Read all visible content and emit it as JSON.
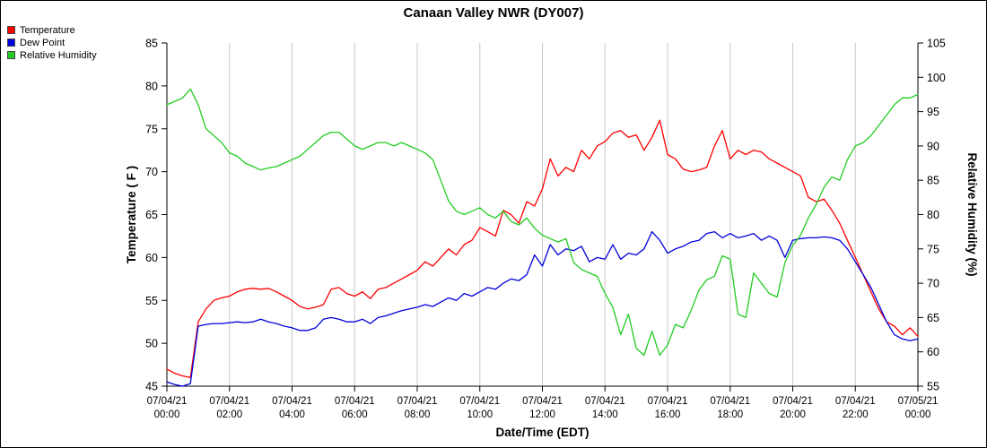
{
  "title": "Canaan Valley NWR (DY007)",
  "chart_data": {
    "type": "line",
    "title": "Canaan Valley NWR (DY007)",
    "xlabel": "Date/Time (EDT)",
    "ylabel_left": "Temperature ( F )",
    "ylabel_right": "Relative Humidity (%)",
    "ylim_left": [
      45,
      85
    ],
    "yticks_left": [
      45,
      50,
      55,
      60,
      65,
      70,
      75,
      80,
      85
    ],
    "ylim_right": [
      55,
      105
    ],
    "yticks_right": [
      55,
      60,
      65,
      70,
      75,
      80,
      85,
      90,
      95,
      100,
      105
    ],
    "grid": "vertical",
    "grid_color": "#c8c8c8",
    "legend_position": "top-left",
    "x_ticks": [
      {
        "date": "07/04/21",
        "time": "00:00"
      },
      {
        "date": "07/04/21",
        "time": "02:00"
      },
      {
        "date": "07/04/21",
        "time": "04:00"
      },
      {
        "date": "07/04/21",
        "time": "06:00"
      },
      {
        "date": "07/04/21",
        "time": "08:00"
      },
      {
        "date": "07/04/21",
        "time": "10:00"
      },
      {
        "date": "07/04/21",
        "time": "12:00"
      },
      {
        "date": "07/04/21",
        "time": "14:00"
      },
      {
        "date": "07/04/21",
        "time": "16:00"
      },
      {
        "date": "07/04/21",
        "time": "18:00"
      },
      {
        "date": "07/04/21",
        "time": "20:00"
      },
      {
        "date": "07/04/21",
        "time": "22:00"
      },
      {
        "date": "07/05/21",
        "time": "00:00"
      }
    ],
    "x_hours": [
      0,
      0.25,
      0.5,
      0.75,
      1,
      1.25,
      1.5,
      1.75,
      2,
      2.25,
      2.5,
      2.75,
      3,
      3.25,
      3.5,
      3.75,
      4,
      4.25,
      4.5,
      4.75,
      5,
      5.25,
      5.5,
      5.75,
      6,
      6.25,
      6.5,
      6.75,
      7,
      7.25,
      7.5,
      7.75,
      8,
      8.25,
      8.5,
      8.75,
      9,
      9.25,
      9.5,
      9.75,
      10,
      10.25,
      10.5,
      10.75,
      11,
      11.25,
      11.5,
      11.75,
      12,
      12.25,
      12.5,
      12.75,
      13,
      13.25,
      13.5,
      13.75,
      14,
      14.25,
      14.5,
      14.75,
      15,
      15.25,
      15.5,
      15.75,
      16,
      16.25,
      16.5,
      16.75,
      17,
      17.25,
      17.5,
      17.75,
      18,
      18.25,
      18.5,
      18.75,
      19,
      19.25,
      19.5,
      19.75,
      20,
      20.25,
      20.5,
      20.75,
      21,
      21.25,
      21.5,
      21.75,
      22,
      22.25,
      22.5,
      22.75,
      23,
      23.25,
      23.5,
      23.75,
      24
    ],
    "series": [
      {
        "name": "Temperature",
        "axis": "left",
        "unit": "F",
        "color": "#ff0000",
        "values": [
          47.0,
          46.5,
          46.2,
          46.0,
          52.5,
          54.0,
          55.0,
          55.3,
          55.5,
          56.0,
          56.3,
          56.4,
          56.3,
          56.4,
          56.0,
          55.5,
          55.0,
          54.3,
          54.0,
          54.2,
          54.5,
          56.3,
          56.5,
          55.8,
          55.5,
          56.0,
          55.2,
          56.3,
          56.5,
          57.0,
          57.5,
          58.0,
          58.5,
          59.5,
          59.0,
          60.0,
          61.0,
          60.3,
          61.5,
          62.0,
          63.5,
          63.0,
          62.5,
          65.5,
          65.0,
          64.0,
          66.5,
          66.0,
          68.0,
          71.5,
          69.5,
          70.5,
          70.0,
          72.5,
          71.5,
          73.0,
          73.5,
          74.5,
          74.8,
          74.0,
          74.3,
          72.5,
          74.0,
          76.0,
          72.0,
          71.5,
          70.3,
          70.0,
          70.2,
          70.5,
          73.0,
          74.8,
          71.5,
          72.5,
          72.0,
          72.5,
          72.3,
          71.5,
          71.0,
          70.5,
          70.0,
          69.5,
          67.0,
          66.5,
          66.8,
          65.5,
          64.0,
          62.0,
          60.0,
          58.0,
          56.0,
          54.0,
          52.5,
          52.0,
          51.0,
          51.8,
          50.8
        ]
      },
      {
        "name": "Dew Point",
        "axis": "left",
        "unit": "F",
        "color": "#0000dd",
        "values": [
          45.5,
          45.2,
          45.0,
          45.3,
          52.0,
          52.2,
          52.3,
          52.3,
          52.4,
          52.5,
          52.4,
          52.5,
          52.8,
          52.5,
          52.3,
          52.0,
          51.8,
          51.5,
          51.5,
          51.8,
          52.8,
          53.0,
          52.8,
          52.5,
          52.5,
          52.8,
          52.3,
          53.0,
          53.2,
          53.5,
          53.8,
          54.0,
          54.2,
          54.5,
          54.3,
          54.8,
          55.3,
          55.0,
          55.8,
          55.5,
          56.0,
          56.5,
          56.3,
          57.0,
          57.5,
          57.3,
          58.0,
          60.3,
          59.0,
          61.5,
          60.3,
          61.0,
          60.8,
          61.3,
          59.5,
          60.0,
          59.8,
          61.5,
          59.8,
          60.5,
          60.3,
          61.0,
          63.0,
          62.0,
          60.5,
          61.0,
          61.3,
          61.8,
          62.0,
          62.8,
          63.0,
          62.3,
          62.8,
          62.3,
          62.5,
          62.8,
          62.0,
          62.5,
          62.0,
          60.0,
          62.0,
          62.2,
          62.3,
          62.3,
          62.4,
          62.3,
          62.0,
          61.0,
          59.5,
          58.0,
          56.5,
          54.5,
          52.5,
          51.0,
          50.5,
          50.3,
          50.5
        ]
      },
      {
        "name": "Relative Humidity",
        "axis": "right",
        "unit": "%",
        "color": "#22cc22",
        "values": [
          96.0,
          96.5,
          97.0,
          98.3,
          96.0,
          92.5,
          91.5,
          90.5,
          89.0,
          88.5,
          87.5,
          87.0,
          86.5,
          86.8,
          87.0,
          87.5,
          88.0,
          88.5,
          89.5,
          90.5,
          91.5,
          92.0,
          92.0,
          91.0,
          90.0,
          89.5,
          90.0,
          90.5,
          90.5,
          90.0,
          90.5,
          90.0,
          89.5,
          89.0,
          88.0,
          85.0,
          82.0,
          80.5,
          80.0,
          80.5,
          81.0,
          80.0,
          79.5,
          80.5,
          79.0,
          78.5,
          79.5,
          78.0,
          77.0,
          76.5,
          76.0,
          76.5,
          73.0,
          72.0,
          71.5,
          71.0,
          68.5,
          66.5,
          62.5,
          65.5,
          60.5,
          59.5,
          63.0,
          59.5,
          61.0,
          64.0,
          63.5,
          66.0,
          69.0,
          70.5,
          71.0,
          74.0,
          73.5,
          65.5,
          65.0,
          71.5,
          70.0,
          68.5,
          68.0,
          73.0,
          75.5,
          77.0,
          79.5,
          81.5,
          84.0,
          85.5,
          85.0,
          88.0,
          90.0,
          90.5,
          91.5,
          93.0,
          94.5,
          96.0,
          97.0,
          97.0,
          97.5
        ]
      }
    ]
  }
}
